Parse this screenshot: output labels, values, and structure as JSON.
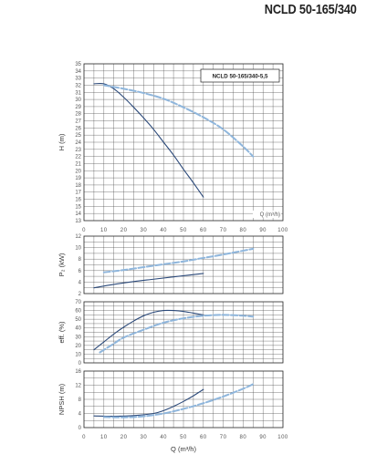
{
  "page_title": "NCLD 50-165/340",
  "chart_data": [
    {
      "type": "line",
      "id": "head",
      "legend": "NCLD 50-165/340-5,5",
      "unit_label": "Q (m³/h)",
      "ylabel": "H (m)",
      "xlim": [
        0,
        100
      ],
      "ylim": [
        13,
        35
      ],
      "x_ticks": [
        0,
        10,
        20,
        30,
        40,
        50,
        60,
        70,
        80,
        90,
        100
      ],
      "y_ticks": [
        13,
        14,
        15,
        16,
        17,
        18,
        19,
        20,
        21,
        22,
        23,
        24,
        25,
        26,
        27,
        28,
        29,
        30,
        31,
        32,
        33,
        34,
        35
      ],
      "grid": true,
      "series": [
        {
          "style": "solid",
          "color": "#2c4a7a",
          "x": [
            5,
            10,
            15,
            20,
            25,
            30,
            35,
            40,
            45,
            50,
            55,
            60
          ],
          "y": [
            32.2,
            32.2,
            31.5,
            30.3,
            28.9,
            27.4,
            25.8,
            24.0,
            22.2,
            20.2,
            18.3,
            16.3
          ]
        },
        {
          "style": "dashed",
          "color": "#8fb6dc",
          "x": [
            10,
            20,
            30,
            40,
            50,
            60,
            70,
            80,
            85
          ],
          "y": [
            32.0,
            31.5,
            30.9,
            30.1,
            28.9,
            27.5,
            25.8,
            23.4,
            22.0
          ]
        }
      ]
    },
    {
      "type": "line",
      "id": "power",
      "ylabel": "P₂ (kW)",
      "xlim": [
        0,
        100
      ],
      "ylim": [
        2,
        12
      ],
      "y_ticks": [
        2,
        4,
        6,
        8,
        10,
        12
      ],
      "grid": true,
      "series": [
        {
          "style": "solid",
          "color": "#2c4a7a",
          "x": [
            5,
            15,
            25,
            35,
            45,
            55,
            60
          ],
          "y": [
            3.0,
            3.6,
            4.1,
            4.5,
            4.9,
            5.3,
            5.5
          ]
        },
        {
          "style": "dashed",
          "color": "#8fb6dc",
          "x": [
            10,
            20,
            30,
            40,
            50,
            60,
            70,
            85
          ],
          "y": [
            5.7,
            6.1,
            6.6,
            7.1,
            7.6,
            8.2,
            8.8,
            9.8
          ]
        }
      ]
    },
    {
      "type": "line",
      "id": "efficiency",
      "ylabel": "eff. (%)",
      "xlim": [
        0,
        100
      ],
      "ylim": [
        0,
        70
      ],
      "y_ticks": [
        0,
        10,
        20,
        30,
        40,
        50,
        60,
        70
      ],
      "grid": true,
      "series": [
        {
          "style": "solid",
          "color": "#2c4a7a",
          "x": [
            5,
            10,
            15,
            20,
            25,
            30,
            35,
            40,
            45,
            50,
            55,
            60
          ],
          "y": [
            15,
            24,
            33,
            41,
            48,
            54,
            58,
            60,
            60,
            59,
            57,
            55
          ]
        },
        {
          "style": "dashed",
          "color": "#8fb6dc",
          "x": [
            8,
            15,
            20,
            30,
            40,
            50,
            60,
            70,
            80,
            85
          ],
          "y": [
            12,
            22,
            29,
            38,
            46,
            51,
            54,
            55,
            54,
            53
          ]
        }
      ]
    },
    {
      "type": "line",
      "id": "npsh",
      "ylabel": "NPSH (m)",
      "xlabel": "Q (m³/h)",
      "xlim": [
        0,
        100
      ],
      "ylim": [
        0,
        16
      ],
      "x_ticks": [
        0,
        10,
        20,
        30,
        40,
        50,
        60,
        70,
        80,
        90,
        100
      ],
      "y_ticks": [
        0,
        4,
        8,
        12,
        16
      ],
      "grid": true,
      "series": [
        {
          "style": "solid",
          "color": "#2c4a7a",
          "x": [
            5,
            15,
            25,
            35,
            40,
            45,
            50,
            55,
            60
          ],
          "y": [
            3.3,
            3.2,
            3.4,
            4.0,
            4.8,
            6.0,
            7.4,
            9.0,
            10.8
          ]
        },
        {
          "style": "dashed",
          "color": "#8fb6dc",
          "x": [
            10,
            20,
            30,
            40,
            50,
            60,
            70,
            80,
            85
          ],
          "y": [
            3.0,
            2.9,
            3.2,
            4.0,
            5.3,
            6.9,
            8.8,
            11.0,
            12.3
          ]
        }
      ]
    }
  ]
}
